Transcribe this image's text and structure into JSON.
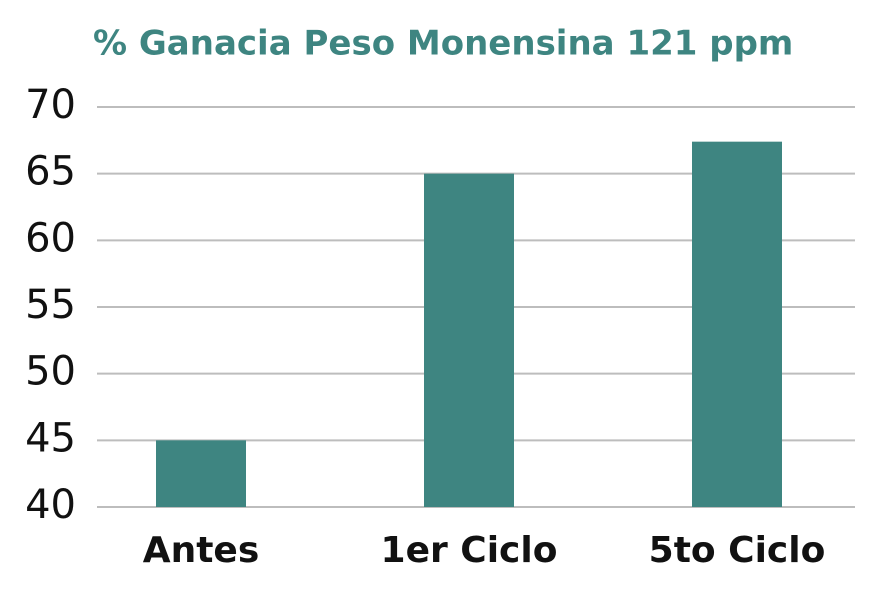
{
  "chart_data": {
    "type": "bar",
    "title": "% Ganacia Peso Monensina 121 ppm",
    "categories": [
      "Antes",
      "1er Ciclo",
      "5to Ciclo"
    ],
    "values": [
      45,
      65,
      67.4
    ],
    "color": "#3e8581",
    "ylim": [
      40,
      70
    ],
    "yticks": [
      40,
      45,
      50,
      55,
      60,
      65,
      70
    ],
    "grid": true
  }
}
